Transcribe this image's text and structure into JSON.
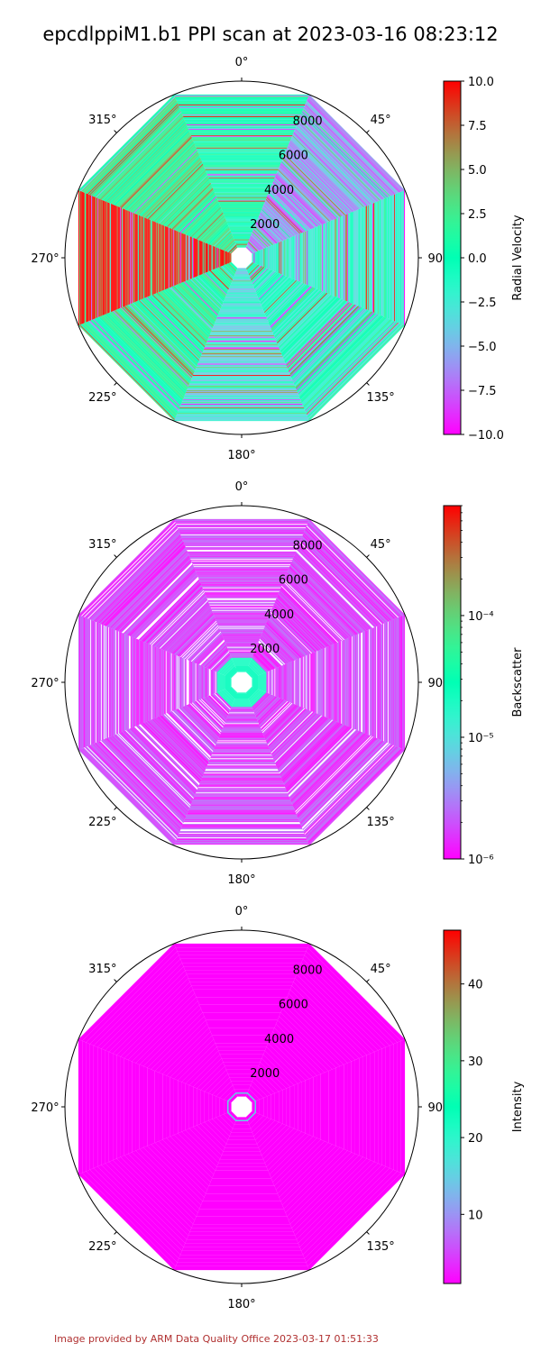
{
  "title": "epcdlppiM1.b1 PPI scan at 2023-03-16 08:23:12",
  "footer": "Image provided by ARM Data Quality Office 2023-03-17 01:51:33",
  "chart_data": [
    {
      "type": "heatmap",
      "projection": "polar",
      "angle_labels": [
        "0°",
        "45°",
        "90°",
        "135°",
        "180°",
        "225°",
        "270°",
        "315°"
      ],
      "radial_ticks": [
        2000,
        4000,
        6000,
        8000
      ],
      "rmax": 9500,
      "sectors": 8,
      "colormap": "rainbow",
      "colorbar": {
        "label": "Radial Velocity",
        "scale": "linear",
        "min": -10.0,
        "max": 10.0,
        "ticks": [
          "10.0",
          "7.5",
          "5.0",
          "2.5",
          "0.0",
          "−2.5",
          "−5.0",
          "−7.5",
          "−10.0"
        ],
        "tick_values": [
          10,
          7.5,
          5,
          2.5,
          0,
          -2.5,
          -5,
          -7.5,
          -10
        ]
      },
      "sector_dominant_value": [
        0.1,
        -6.0,
        -2.0,
        -1.0,
        -3.0,
        1.0,
        9.5,
        2.0
      ]
    },
    {
      "type": "heatmap",
      "projection": "polar",
      "angle_labels": [
        "0°",
        "45°",
        "90°",
        "135°",
        "180°",
        "225°",
        "270°",
        "315°"
      ],
      "radial_ticks": [
        2000,
        4000,
        6000,
        8000
      ],
      "rmax": 9500,
      "sectors": 8,
      "colormap": "rainbow",
      "colorbar": {
        "label": "Backscatter",
        "scale": "log",
        "min": 1e-06,
        "max": 0.0008,
        "ticks": [
          "10⁻⁴",
          "10⁻⁵",
          "10⁻⁶"
        ],
        "tick_values": [
          0.0001,
          1e-05,
          1e-06
        ]
      },
      "near_range_value": 2e-05,
      "far_range_value": 1e-06
    },
    {
      "type": "heatmap",
      "projection": "polar",
      "angle_labels": [
        "0°",
        "45°",
        "90°",
        "135°",
        "180°",
        "225°",
        "270°",
        "315°"
      ],
      "radial_ticks": [
        2000,
        4000,
        6000,
        8000
      ],
      "rmax": 9500,
      "sectors": 8,
      "colormap": "rainbow",
      "colorbar": {
        "label": "Intensity",
        "scale": "linear",
        "min": 1,
        "max": 47,
        "ticks": [
          "40",
          "30",
          "20",
          "10"
        ],
        "tick_values": [
          40,
          30,
          20,
          10
        ]
      },
      "near_range_value": 15,
      "far_range_value": 1
    }
  ]
}
